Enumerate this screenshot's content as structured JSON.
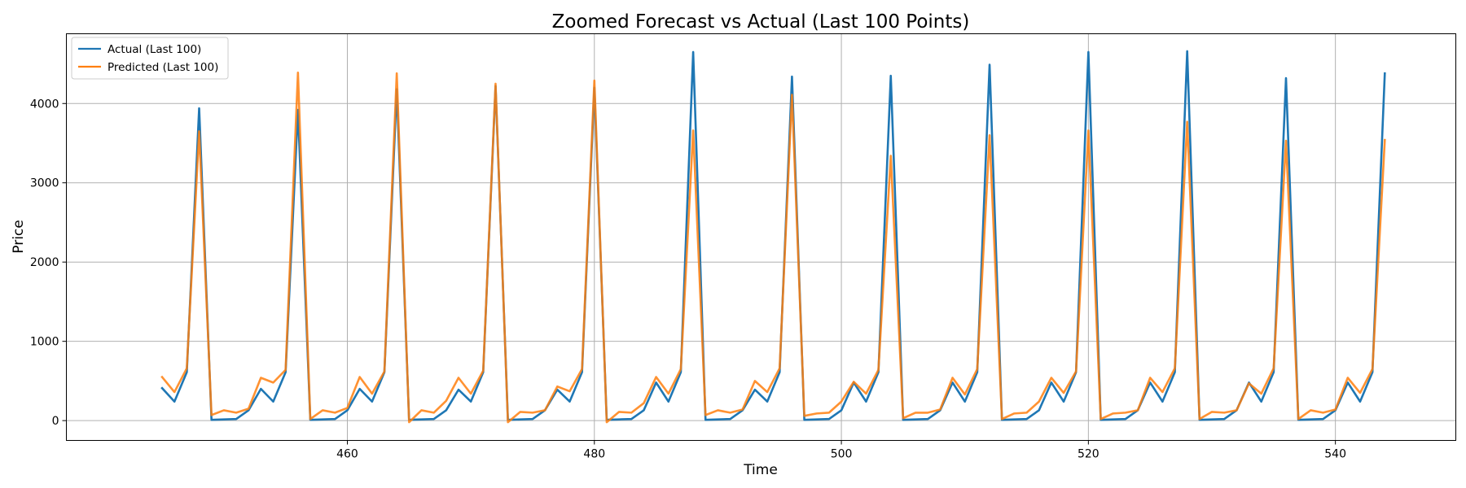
{
  "chart_data": {
    "type": "line",
    "title": "Zoomed Forecast vs Actual (Last 100 Points)",
    "xlabel": "Time",
    "ylabel": "Price",
    "xlim": [
      437.25,
      549.75
    ],
    "ylim": [
      -250,
      4880
    ],
    "xticks": [
      460,
      480,
      500,
      520,
      540
    ],
    "yticks": [
      0,
      1000,
      2000,
      3000,
      4000
    ],
    "grid": true,
    "legend": "top-left",
    "x_start": 445,
    "series": [
      {
        "name": "Actual (Last 100)",
        "color": "#1f77b4",
        "values": [
          410,
          240,
          610,
          3940,
          10,
          15,
          20,
          130,
          400,
          240,
          610,
          3920,
          10,
          15,
          20,
          130,
          400,
          240,
          610,
          4180,
          10,
          15,
          20,
          130,
          390,
          240,
          610,
          4220,
          10,
          15,
          20,
          130,
          390,
          240,
          610,
          4200,
          10,
          15,
          20,
          130,
          480,
          240,
          610,
          4650,
          10,
          15,
          20,
          130,
          390,
          240,
          610,
          4340,
          10,
          15,
          20,
          130,
          480,
          240,
          610,
          4350,
          10,
          15,
          20,
          130,
          480,
          240,
          610,
          4490,
          10,
          15,
          20,
          130,
          480,
          240,
          610,
          4650,
          10,
          15,
          20,
          130,
          480,
          240,
          610,
          4660,
          10,
          15,
          20,
          130,
          480,
          240,
          610,
          4320,
          10,
          15,
          20,
          130,
          480,
          240,
          610,
          4380
        ]
      },
      {
        "name": "Predicted (Last 100)",
        "color": "#ff7f0e",
        "values": [
          550,
          360,
          660,
          3650,
          70,
          130,
          100,
          150,
          540,
          480,
          640,
          4390,
          20,
          130,
          100,
          160,
          550,
          340,
          620,
          4380,
          -20,
          130,
          100,
          250,
          540,
          340,
          630,
          4250,
          -20,
          110,
          100,
          130,
          430,
          370,
          650,
          4290,
          -20,
          110,
          100,
          220,
          550,
          340,
          650,
          3660,
          70,
          130,
          100,
          140,
          500,
          360,
          660,
          4110,
          60,
          90,
          100,
          240,
          490,
          340,
          640,
          3340,
          30,
          100,
          100,
          140,
          540,
          330,
          650,
          3600,
          20,
          90,
          100,
          240,
          540,
          350,
          620,
          3660,
          20,
          90,
          100,
          130,
          540,
          360,
          660,
          3770,
          20,
          110,
          100,
          130,
          470,
          340,
          660,
          3530,
          20,
          130,
          100,
          140,
          540,
          350,
          650,
          3540
        ]
      }
    ]
  }
}
